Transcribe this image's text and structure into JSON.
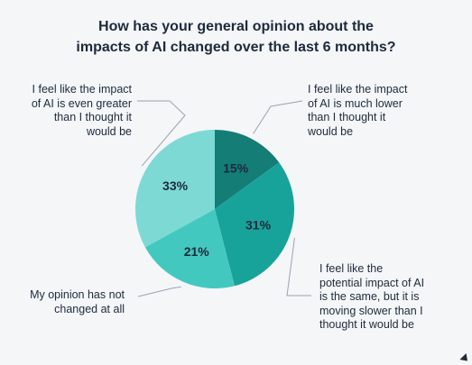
{
  "chart_data": {
    "type": "pie",
    "title": [
      "How has your general opinion about the",
      "impacts of AI changed over the last 6 months?"
    ],
    "slices": [
      {
        "label": "I feel like the impact\nof AI is much lower\nthan I thought it\nwould be",
        "value": 15,
        "display": "15%",
        "color": "#137d76"
      },
      {
        "label": "I feel like the\npotential impact of AI\nis the same, but it is\nmoving slower than I\nthought it would be",
        "value": 31,
        "display": "31%",
        "color": "#18a39a"
      },
      {
        "label": "My opinion has not\nchanged at all",
        "value": 21,
        "display": "21%",
        "color": "#43c8bf"
      },
      {
        "label": "I feel like the impact\nof AI is even greater\nthan I thought it\nwould be",
        "value": 33,
        "display": "33%",
        "color": "#7dd9d4"
      }
    ]
  }
}
